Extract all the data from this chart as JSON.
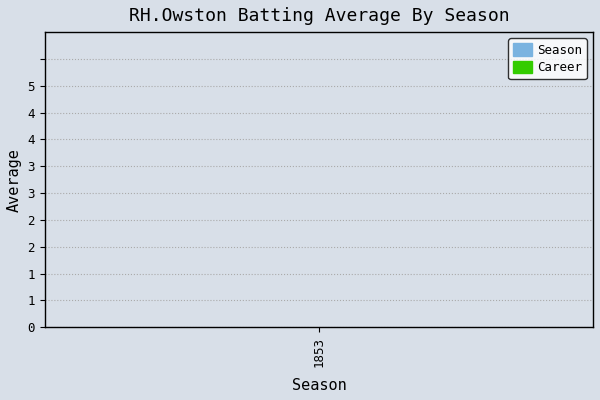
{
  "title": "RH.Owston Batting Average By Season",
  "xlabel": "Season",
  "ylabel": "Average",
  "xlim": [
    1852.5,
    1853.5
  ],
  "ylim": [
    0,
    5.5
  ],
  "yticks": [
    0,
    0.5,
    1.0,
    1.5,
    2.0,
    2.5,
    3.0,
    3.5,
    4.0,
    4.5,
    5.0
  ],
  "ytick_labels": [
    "0",
    "1",
    "1",
    "2",
    "2",
    "3",
    "3",
    "4",
    "4",
    "5",
    ""
  ],
  "xticks": [
    1853
  ],
  "xtick_labels": [
    "1853"
  ],
  "season_color": "#7ab3e0",
  "career_color": "#33cc00",
  "background_color": "#d8dfe8",
  "plot_bg_color": "#d8dfe8",
  "grid_color": "#aaaaaa",
  "title_fontsize": 13,
  "label_fontsize": 11,
  "tick_fontsize": 9,
  "legend_fontsize": 9,
  "font_family": "monospace"
}
